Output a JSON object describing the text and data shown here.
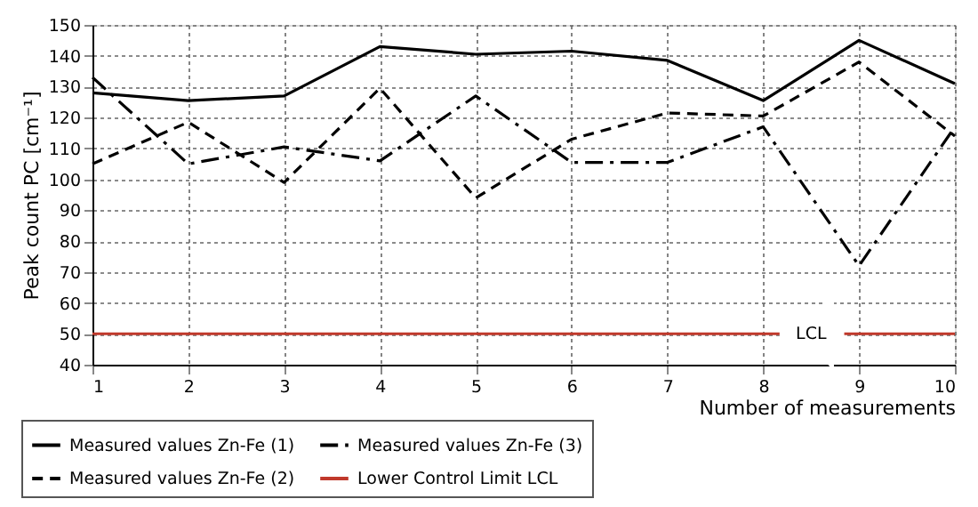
{
  "chart_data": {
    "type": "line",
    "xlabel": "Number of measurements",
    "ylabel": "Peak count PC [cm⁻¹]",
    "x": [
      1,
      2,
      3,
      4,
      5,
      6,
      7,
      8,
      9,
      10
    ],
    "series": [
      {
        "name": "Measured values Zn-Fe (1)",
        "color": "#000000",
        "line_style": "solid",
        "values": [
          128,
          125.5,
          127,
          143,
          140.5,
          141.5,
          138.5,
          125.5,
          145,
          131
        ]
      },
      {
        "name": "Measured values Zn-Fe (2)",
        "color": "#000000",
        "line_style": "dashed",
        "values": [
          105,
          118.5,
          99,
          129.5,
          94,
          113,
          121.5,
          120.5,
          138,
          114
        ]
      },
      {
        "name": "Measured values Zn-Fe (3)",
        "color": "#000000",
        "line_style": "dashdot",
        "values": [
          133,
          105,
          110.5,
          106,
          127,
          105.5,
          105.5,
          117,
          72,
          117
        ]
      },
      {
        "name": "Lower Control Limit LCL",
        "color": "#c0392b",
        "line_style": "solid",
        "x": [
          1,
          10
        ],
        "values": [
          50,
          50
        ]
      }
    ],
    "annotations": [
      {
        "text": "LCL",
        "x": 8.5,
        "y": 50
      }
    ],
    "xlim": [
      1,
      10
    ],
    "xticks": [
      1,
      2,
      3,
      4,
      5,
      6,
      7,
      8,
      9,
      10
    ],
    "ylim": [
      40,
      150
    ],
    "yticks": [
      40,
      50,
      60,
      70,
      80,
      90,
      100,
      110,
      120,
      130,
      140,
      150
    ],
    "grid": true,
    "legend": "bottom left",
    "marker": "none"
  }
}
